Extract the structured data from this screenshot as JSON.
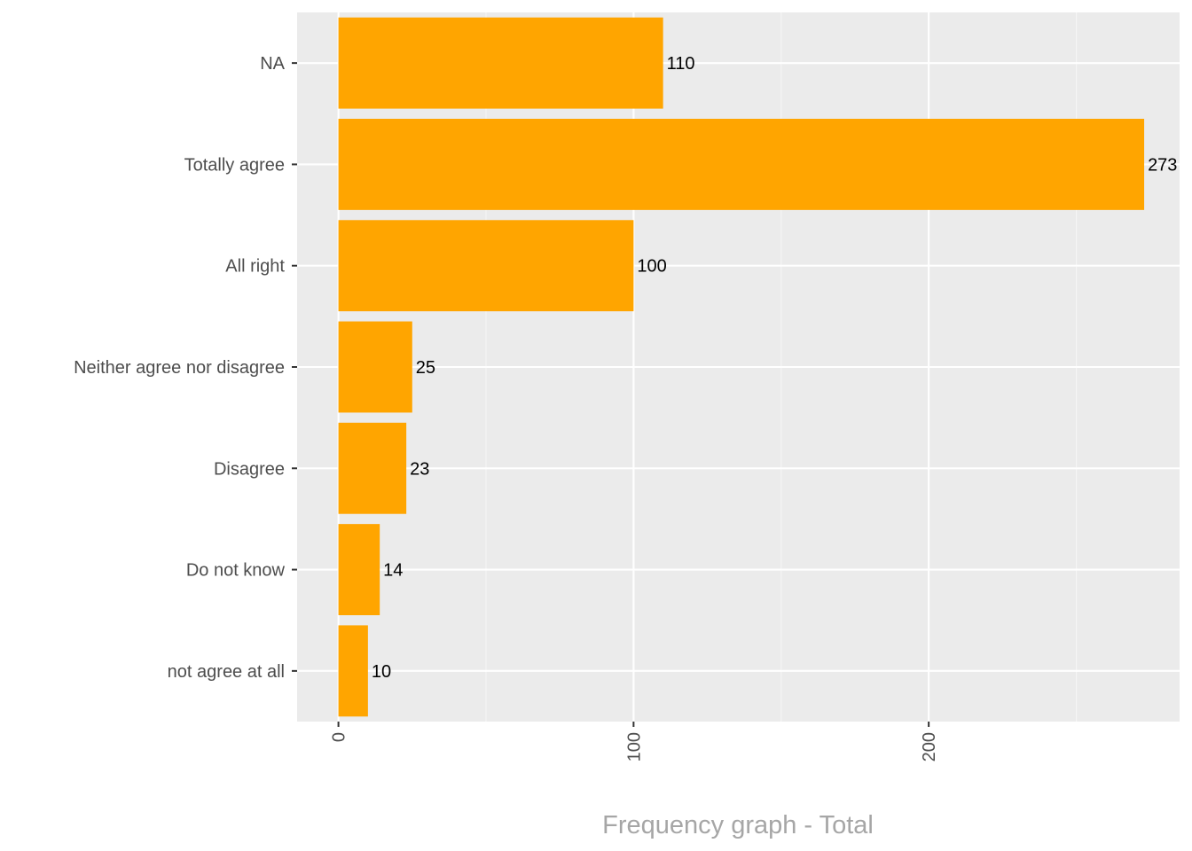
{
  "chart_data": {
    "type": "bar",
    "orientation": "horizontal",
    "categories": [
      "NA",
      "Totally agree",
      "All right",
      "Neither agree nor disagree",
      "Disagree",
      "Do not know",
      "not agree at all"
    ],
    "values": [
      110,
      273,
      100,
      25,
      23,
      14,
      10
    ],
    "data_labels": [
      "110",
      "273",
      "100",
      "25",
      "23",
      "14",
      "10"
    ],
    "xlabel": "Frequency graph - Total",
    "ylabel": "",
    "xlim": [
      -14,
      285
    ],
    "x_ticks": [
      0,
      100,
      200
    ],
    "x_tick_labels": [
      "0",
      "100",
      "200"
    ],
    "x_tick_label_rotation": "vertical",
    "grid": true,
    "legend": "none",
    "colors": {
      "bar": "#FFA500",
      "panel_background": "#EBEBEB",
      "grid_major": "#FFFFFF",
      "grid_minor": "#F5F5F5",
      "axis_text": "#4D4D4D",
      "axis_title": "#A6A6A6",
      "value_label": "#000000"
    }
  }
}
